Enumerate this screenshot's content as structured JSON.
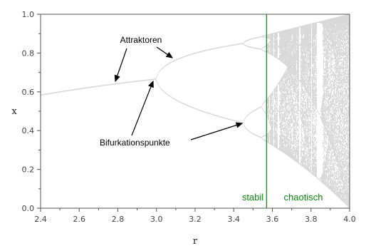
{
  "chart_data": {
    "type": "scatter",
    "title": "",
    "xlabel": "r",
    "ylabel": "x",
    "xlim": [
      2.4,
      4.0
    ],
    "ylim": [
      0.0,
      1.0
    ],
    "x_ticks": [
      "2.4",
      "2.6",
      "2.8",
      "3.0",
      "3.2",
      "3.4",
      "3.6",
      "3.8",
      "4.0"
    ],
    "y_ticks": [
      "0.0",
      "0.2",
      "0.4",
      "0.6",
      "0.8",
      "1.0"
    ],
    "grid": false,
    "series": [
      {
        "values": "logistic map x(n+1) = r·x(n)·(1−x(n)) attractor points for r in [2.4, 4.0]"
      }
    ],
    "vertical_line": {
      "x": 3.57,
      "color": "#109a10"
    },
    "annotations": [
      {
        "text": "Attraktoren",
        "arrows_to": [
          [
            2.85,
            0.665
          ],
          [
            3.21,
            0.77
          ]
        ]
      },
      {
        "text": "Bifurkationspunkte",
        "arrows_to": [
          [
            3.0,
            0.667
          ],
          [
            3.45,
            0.44
          ]
        ]
      },
      {
        "text": "stabil"
      },
      {
        "text": "chaotisch"
      }
    ]
  }
}
